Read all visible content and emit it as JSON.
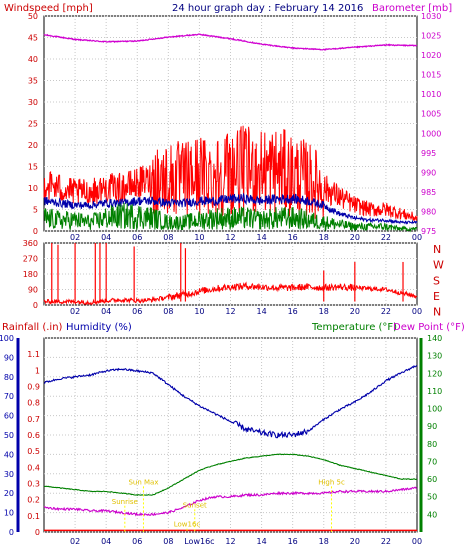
{
  "header": {
    "left_title": "Windspeed [mph]",
    "center_title": "24 hour graph day : February 14 2016",
    "right_title": "Barometer [mb]"
  },
  "colors": {
    "frame": "#000000",
    "grid": "#c8c8c8",
    "red": "#ff0000",
    "blue": "#0000aa",
    "green": "#008000",
    "magenta": "#d000d0",
    "dewpoint": "#cc00cc",
    "yellow": "#ffff00"
  },
  "chart_data": [
    {
      "type": "line",
      "title": "24 hour graph day : February 14 2016",
      "x_ticks": [
        "02",
        "04",
        "06",
        "08",
        "10",
        "12",
        "14",
        "16",
        "18",
        "20",
        "22",
        "00"
      ],
      "y_left_label": "Windspeed [mph]",
      "y_left_range": [
        0,
        50
      ],
      "y_left_ticks": [
        0,
        5,
        10,
        15,
        20,
        25,
        30,
        35,
        40,
        45,
        50
      ],
      "y_right_label": "Barometer [mb]",
      "y_right_range": [
        975,
        1030
      ],
      "y_right_ticks": [
        975,
        980,
        985,
        990,
        995,
        1000,
        1005,
        1010,
        1015,
        1020,
        1025,
        1030
      ],
      "series": [
        {
          "axis": "right",
          "color": "#d000d0",
          "x": [
            0,
            2,
            4,
            6,
            8,
            10,
            12,
            14,
            16,
            18,
            20,
            22,
            24
          ],
          "y": [
            1025.2,
            1024.0,
            1023.4,
            1023.6,
            1024.6,
            1025.3,
            1024.2,
            1022.8,
            1021.8,
            1021.4,
            1022.0,
            1022.6,
            1022.4
          ]
        },
        {
          "axis": "left",
          "color": "#ff0000",
          "x": [
            0,
            1,
            2,
            3,
            4,
            5,
            6,
            7,
            8,
            9,
            10,
            11,
            12,
            13,
            14,
            15,
            16,
            17,
            18,
            19,
            20,
            21,
            22,
            23,
            24
          ],
          "y": [
            11,
            10,
            9,
            9,
            10,
            10,
            11,
            12,
            12,
            12,
            13,
            13,
            14,
            14,
            14,
            14,
            13,
            12,
            10,
            8,
            6,
            5,
            5,
            4,
            3
          ]
        },
        {
          "axis": "left",
          "color": "#0000aa",
          "x": [
            0,
            1,
            2,
            3,
            4,
            5,
            6,
            7,
            8,
            9,
            10,
            11,
            12,
            13,
            14,
            15,
            16,
            17,
            18,
            19,
            20,
            21,
            22,
            23,
            24
          ],
          "y": [
            7,
            6.5,
            6,
            6,
            6.5,
            6.5,
            7,
            7,
            6.5,
            6.5,
            7,
            7,
            7.5,
            7.5,
            7,
            7.5,
            7.5,
            7,
            6,
            4,
            3,
            2.5,
            2.5,
            2,
            2
          ]
        },
        {
          "axis": "left",
          "color": "#008000",
          "x": [
            0,
            1,
            2,
            3,
            4,
            5,
            6,
            7,
            8,
            9,
            10,
            11,
            12,
            13,
            14,
            15,
            16,
            17,
            18,
            19,
            20,
            21,
            22,
            23,
            24
          ],
          "y": [
            3,
            2.5,
            2.5,
            2,
            3,
            3.5,
            3.5,
            3,
            2,
            2,
            2.5,
            3,
            3,
            3,
            2.5,
            3,
            3,
            2.5,
            2,
            1.5,
            1,
            1,
            1,
            0.5,
            0.5
          ]
        }
      ]
    },
    {
      "type": "scatter",
      "x_ticks": [
        "02",
        "04",
        "06",
        "08",
        "10",
        "12",
        "14",
        "16",
        "18",
        "20",
        "22",
        "00"
      ],
      "y_range": [
        0,
        360
      ],
      "y_ticks": [
        0,
        90,
        180,
        270,
        360
      ],
      "y_right_letters": [
        "N",
        "W",
        "S",
        "E",
        "N"
      ],
      "series": [
        {
          "color": "#ff0000",
          "x": [
            0,
            1,
            2,
            3,
            4,
            5,
            6,
            7,
            8,
            9,
            10,
            11,
            12,
            13,
            14,
            15,
            16,
            17,
            18,
            19,
            20,
            21,
            22,
            23,
            24
          ],
          "y": [
            20,
            20,
            20,
            15,
            25,
            30,
            25,
            30,
            45,
            60,
            80,
            95,
            105,
            110,
            105,
            100,
            100,
            105,
            100,
            105,
            100,
            95,
            90,
            70,
            50
          ]
        },
        {
          "color": "#ff0000",
          "spikes_x": [
            0.5,
            0.9,
            2.0,
            3.3,
            3.6,
            4.0,
            5.8,
            8.8,
            9.1,
            18.0,
            20.0,
            23.1
          ],
          "spikes_y": [
            360,
            350,
            360,
            360,
            360,
            360,
            340,
            360,
            330,
            200,
            250,
            250
          ]
        }
      ]
    },
    {
      "type": "line",
      "x_ticks": [
        "02",
        "04",
        "06",
        "08",
        "Low16c",
        "12",
        "14",
        "16",
        "18",
        "20",
        "22",
        "00"
      ],
      "y_left_label": "Rainfall (.in)",
      "y_left_range": [
        0,
        1.2
      ],
      "y_left_ticks": [
        0,
        0.1,
        0.2,
        0.3,
        0.4,
        0.5,
        0.6,
        0.7,
        0.8,
        0.9,
        1.0,
        1.1
      ],
      "y_humidity_label": "Humidity (%)",
      "y_humidity_range": [
        0,
        100
      ],
      "y_humidity_ticks": [
        0,
        10,
        20,
        30,
        40,
        50,
        60,
        70,
        80,
        90,
        100
      ],
      "y_right_label": "Temperature (°F)",
      "y_right_label2": "Dew Point (°F)",
      "y_right_range": [
        30,
        140
      ],
      "y_right_ticks": [
        40,
        50,
        60,
        70,
        80,
        90,
        100,
        110,
        120,
        130,
        140
      ],
      "series": [
        {
          "axis": "humidity",
          "color": "#0000aa",
          "x": [
            0,
            1,
            2,
            3,
            4,
            5,
            6,
            7,
            8,
            9,
            10,
            11,
            12,
            13,
            14,
            15,
            16,
            17,
            18,
            19,
            20,
            21,
            22,
            23,
            24
          ],
          "y": [
            77,
            79,
            80,
            81,
            83,
            84,
            83,
            82,
            76,
            70,
            65,
            61,
            57,
            53,
            51,
            50,
            50,
            52,
            58,
            63,
            67,
            72,
            78,
            82,
            86
          ]
        },
        {
          "axis": "right",
          "color": "#008000",
          "x": [
            0,
            1,
            2,
            3,
            4,
            5,
            6,
            7,
            8,
            9,
            10,
            11,
            12,
            13,
            14,
            15,
            16,
            17,
            18,
            19,
            20,
            21,
            22,
            23,
            24
          ],
          "y": [
            56,
            55,
            54,
            53,
            53,
            52,
            51,
            51,
            55,
            60,
            65,
            68,
            70,
            72,
            73,
            74,
            74,
            73,
            71,
            68,
            66,
            64,
            62,
            60,
            60
          ]
        },
        {
          "axis": "right",
          "color": "#cc00cc",
          "x": [
            0,
            1,
            2,
            3,
            4,
            5,
            6,
            7,
            8,
            9,
            10,
            11,
            12,
            13,
            14,
            15,
            16,
            17,
            18,
            19,
            20,
            21,
            22,
            23,
            24
          ],
          "y": [
            44,
            43,
            43,
            42,
            42,
            41,
            40,
            40,
            41,
            44,
            48,
            50,
            50,
            51,
            51,
            52,
            52,
            52,
            52,
            53,
            53,
            53,
            53,
            54,
            55
          ]
        }
      ],
      "annotations": [
        {
          "text": "Sunrise",
          "x": 5.2,
          "y_temp": 46
        },
        {
          "text": "Sun Max",
          "x": 6.4,
          "y_temp": 57
        },
        {
          "text": "Sunset",
          "x": 9.7,
          "y_temp": 44
        },
        {
          "text": "High 5c",
          "x": 18.5,
          "y_temp": 57
        },
        {
          "text": "Low16c",
          "x": 9.2,
          "y_temp": 33
        }
      ]
    }
  ]
}
